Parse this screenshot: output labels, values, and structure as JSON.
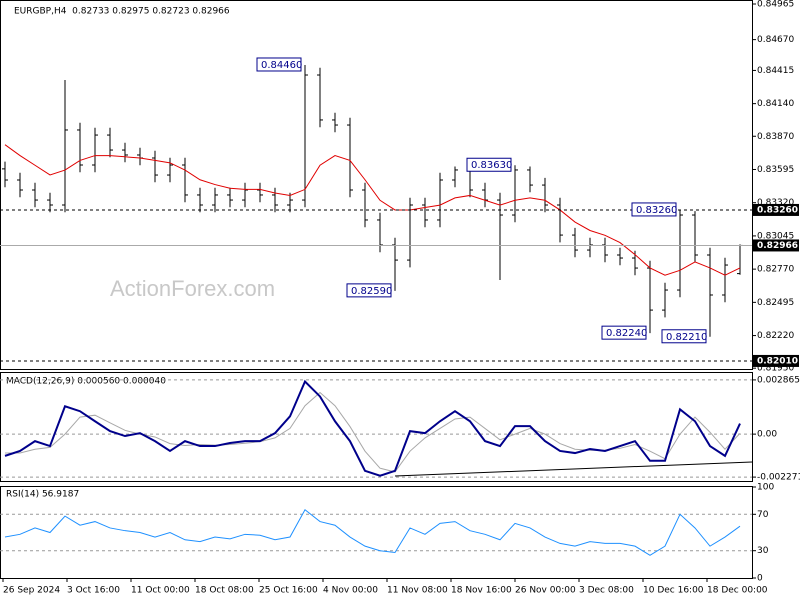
{
  "chart_data": [
    {
      "type": "ohlc",
      "title": "EURGBP,H4  0.82733 0.82975 0.82723 0.82966",
      "watermark": "ActionForex.com",
      "color": "#000000",
      "open": [
        0.836,
        0.83508,
        0.83425,
        0.83342,
        0.83301,
        0.83922,
        0.83632,
        0.8388,
        0.83756,
        0.83715,
        0.8369,
        0.83549,
        0.83632,
        0.83384,
        0.83301,
        0.83384,
        0.83342,
        0.83425,
        0.83384,
        0.83301,
        0.83342,
        0.84377,
        0.84005,
        0.83963,
        0.83425,
        0.83177,
        0.8297,
        0.82845,
        0.83301,
        0.83177,
        0.83508,
        0.83591,
        0.83425,
        0.83342,
        0.83218,
        0.83591,
        0.83466,
        0.83301,
        0.83052,
        0.82928,
        0.8297,
        0.82887,
        0.82862,
        0.82779,
        0.82431,
        0.82597,
        0.83218,
        0.82887,
        0.82556,
        0.82733
      ],
      "high": [
        0.8366,
        0.83568,
        0.83485,
        0.83402,
        0.84336,
        0.83982,
        0.8394,
        0.8394,
        0.83816,
        0.83775,
        0.8375,
        0.83692,
        0.83692,
        0.83444,
        0.83444,
        0.83444,
        0.83485,
        0.83485,
        0.83444,
        0.83402,
        0.8446,
        0.84437,
        0.84065,
        0.84023,
        0.83485,
        0.83237,
        0.8303,
        0.83361,
        0.83361,
        0.83568,
        0.8362,
        0.8361,
        0.83485,
        0.83402,
        0.8363,
        0.8362,
        0.83526,
        0.83361,
        0.83112,
        0.8303,
        0.8303,
        0.82947,
        0.82922,
        0.82839,
        0.82657,
        0.8326,
        0.8325,
        0.82947,
        0.82864,
        0.82975
      ],
      "low": [
        0.83448,
        0.83365,
        0.83282,
        0.83241,
        0.83241,
        0.83572,
        0.83572,
        0.83696,
        0.83655,
        0.8363,
        0.83489,
        0.83489,
        0.83324,
        0.83241,
        0.83241,
        0.83282,
        0.83282,
        0.83324,
        0.83241,
        0.83241,
        0.83282,
        0.83945,
        0.83903,
        0.83365,
        0.83117,
        0.8291,
        0.8259,
        0.82785,
        0.83117,
        0.83117,
        0.83448,
        0.83365,
        0.83282,
        0.8268,
        0.83158,
        0.83406,
        0.83241,
        0.82992,
        0.82868,
        0.82868,
        0.82827,
        0.82802,
        0.82719,
        0.8224,
        0.82371,
        0.82537,
        0.82827,
        0.8221,
        0.82496,
        0.82723
      ],
      "close": [
        0.83508,
        0.83425,
        0.83342,
        0.83301,
        0.83922,
        0.83632,
        0.8388,
        0.83756,
        0.83715,
        0.8369,
        0.83549,
        0.83632,
        0.83384,
        0.83301,
        0.83384,
        0.83342,
        0.83425,
        0.83384,
        0.83301,
        0.83342,
        0.84377,
        0.84005,
        0.83963,
        0.83425,
        0.83177,
        0.8297,
        0.82845,
        0.83301,
        0.83177,
        0.83508,
        0.83591,
        0.83425,
        0.83342,
        0.83218,
        0.83591,
        0.83466,
        0.83301,
        0.83052,
        0.82928,
        0.8297,
        0.82887,
        0.82862,
        0.82779,
        0.82431,
        0.82597,
        0.83218,
        0.82887,
        0.82556,
        0.82804,
        0.82966
      ],
      "overlay": {
        "color": "#e00000",
        "values": [
          0.838,
          0.8371,
          0.8363,
          0.8355,
          0.8359,
          0.8367,
          0.8371,
          0.8371,
          0.837,
          0.8369,
          0.8367,
          0.8365,
          0.8359,
          0.8351,
          0.8347,
          0.8344,
          0.8343,
          0.8343,
          0.834,
          0.8338,
          0.8343,
          0.8363,
          0.8371,
          0.8367,
          0.8351,
          0.8334,
          0.8326,
          0.8326,
          0.8328,
          0.833,
          0.8336,
          0.8338,
          0.8334,
          0.833,
          0.8334,
          0.8336,
          0.8334,
          0.8326,
          0.8316,
          0.8309,
          0.8305,
          0.8299,
          0.8289,
          0.8278,
          0.8272,
          0.8276,
          0.8283,
          0.8278,
          0.8272,
          0.8278
        ]
      },
      "ylim": [
        0.81935,
        0.84998
      ],
      "yticks": [
        {
          "value": 0.84965,
          "label": "0.84965"
        },
        {
          "value": 0.8467,
          "label": "0.84670"
        },
        {
          "value": 0.84415,
          "label": "0.84415"
        },
        {
          "value": 0.8414,
          "label": "0.84140"
        },
        {
          "value": 0.8387,
          "label": "0.83870"
        },
        {
          "value": 0.83595,
          "label": "0.83595"
        },
        {
          "value": 0.8332,
          "label": "0.83320"
        },
        {
          "value": 0.83045,
          "label": "0.83045"
        },
        {
          "value": 0.8277,
          "label": "0.82770"
        },
        {
          "value": 0.82495,
          "label": "0.82495"
        },
        {
          "value": 0.8222,
          "label": "0.82220"
        },
        {
          "value": 0.8195,
          "label": "0.81950"
        }
      ],
      "levels": [
        {
          "value": 0.8326,
          "label": "0.83260",
          "style": "dashed"
        },
        {
          "value": 0.82966,
          "label": "0.82966",
          "style": "solid"
        },
        {
          "value": 0.8201,
          "label": "0.82010",
          "style": "dashed"
        }
      ],
      "annotations": [
        {
          "value": 0.8446,
          "label": "0.84460"
        },
        {
          "value": 0.8259,
          "label": "0.82590"
        },
        {
          "value": 0.8363,
          "label": "0.83630"
        },
        {
          "value": 0.8326,
          "label": "0.83260"
        },
        {
          "value": 0.8224,
          "label": "0.82240"
        },
        {
          "value": 0.8221,
          "label": "0.82210"
        }
      ],
      "x_labels": [
        "26 Sep 2024",
        "3 Oct 16:00",
        "11 Oct 00:00",
        "18 Oct 08:00",
        "25 Oct 16:00",
        "4 Nov 00:00",
        "11 Nov 08:00",
        "18 Nov 16:00",
        "26 Nov 00:00",
        "3 Dec 08:00",
        "10 Dec 16:00",
        "18 Dec 00:00"
      ]
    },
    {
      "type": "line",
      "title": "MACD(12,26,9) 0.000560 0.000040",
      "series": [
        {
          "color": "#00008b",
          "values": [
            -0.00115,
            -0.00089,
            -0.00037,
            -0.00063,
            0.00147,
            0.00121,
            0.00068,
            0.00016,
            -0.0001,
            5e-05,
            -0.00037,
            -0.00089,
            -0.00037,
            -0.00063,
            -0.00063,
            -0.00047,
            -0.00037,
            -0.00037,
            5e-05,
            0.00094,
            0.00278,
            0.00199,
            0.00068,
            -0.00037,
            -0.00194,
            -0.0022,
            -0.00194,
            0.00016,
            5e-05,
            0.00068,
            0.00121,
            0.00068,
            -0.00037,
            -0.00063,
            0.00042,
            0.00042,
            -0.00037,
            -0.00089,
            -0.001,
            -0.00079,
            -0.00089,
            -0.00063,
            -0.00037,
            -0.00141,
            -0.00141,
            0.00131,
            0.00068,
            -0.00063,
            -0.00115,
            0.00056
          ]
        },
        {
          "color": "#a8a8a8",
          "values": [
            -0.001,
            -0.001,
            -0.0008,
            -0.0007,
            0,
            0.0009,
            0.001,
            0.0006,
            0.0002,
            0,
            -0.00015,
            -0.0005,
            -0.0006,
            -0.00055,
            -0.00058,
            -0.00055,
            -0.00048,
            -0.0004,
            -0.0002,
            0.0003,
            0.0015,
            0.0022,
            0.0015,
            0.0004,
            -0.0009,
            -0.0018,
            -0.002,
            -0.0009,
            -0.0002,
            0.0003,
            0.0008,
            0.0009,
            0.0003,
            -0.0003,
            0,
            0.0003,
            0,
            -0.0005,
            -0.0008,
            -0.00085,
            -0.00085,
            -0.00075,
            -0.00055,
            -0.0009,
            -0.0013,
            0,
            0.0009,
            0.0001,
            -0.0008,
            4e-05
          ]
        }
      ],
      "ylim": [
        -0.00253,
        0.00323
      ],
      "yticks": [
        0.002865,
        {
          "value": 0,
          "label": "0.00"
        },
        -0.002271
      ],
      "grid": true
    },
    {
      "type": "line",
      "title": "RSI(14) 56.9187",
      "series": [
        {
          "color": "#1e90ff",
          "values": [
            45,
            48,
            55,
            50,
            68,
            58,
            62,
            55,
            52,
            50,
            45,
            50,
            42,
            40,
            45,
            43,
            48,
            47,
            42,
            45,
            75,
            62,
            58,
            45,
            35,
            30,
            28,
            55,
            48,
            60,
            62,
            52,
            48,
            42,
            60,
            55,
            45,
            38,
            35,
            40,
            38,
            38,
            35,
            25,
            35,
            70,
            55,
            35,
            45,
            56.9187
          ]
        }
      ],
      "ylim": [
        0,
        100
      ],
      "yticks": [
        100,
        70,
        30,
        0
      ],
      "grid": true
    }
  ]
}
